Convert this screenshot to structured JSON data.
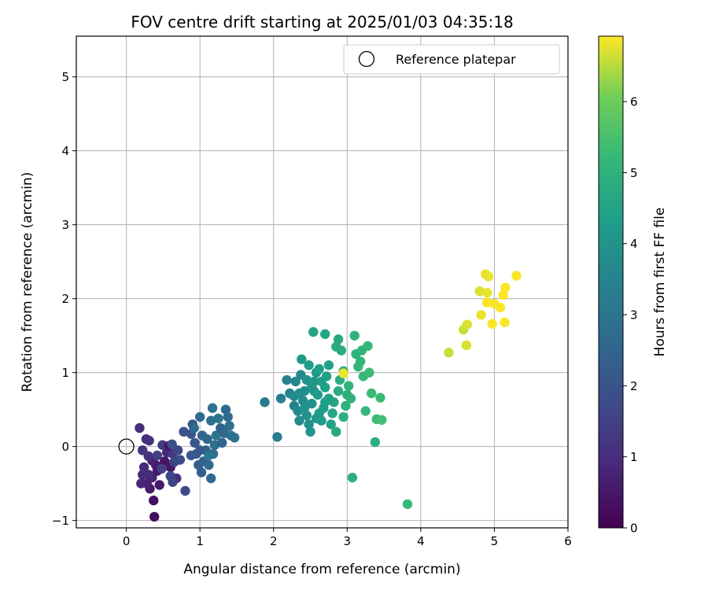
{
  "chart_data": {
    "type": "scatter",
    "title": "FOV centre drift starting at 2025/01/03 04:35:18",
    "xlabel": "Angular distance from reference (arcmin)",
    "ylabel": "Rotation from reference (arcmin)",
    "xlim": [
      -0.68,
      6.0
    ],
    "ylim": [
      -1.1,
      5.55
    ],
    "xticks": [
      0,
      1,
      2,
      3,
      4,
      5,
      6
    ],
    "yticks": [
      -1,
      0,
      1,
      2,
      3,
      4,
      5
    ],
    "grid": true,
    "legend": {
      "placement": "top-right",
      "entries": [
        "Reference platepar"
      ]
    },
    "reference_point": {
      "label": "Reference platepar",
      "x": 0,
      "y": 0
    },
    "colorbar": {
      "label": "Hours from first FF file",
      "colormap": "viridis",
      "range": [
        0,
        6.92
      ],
      "ticks": [
        0,
        1,
        2,
        3,
        4,
        5,
        6
      ]
    },
    "points": [
      {
        "x": 0.38,
        "y": -0.95,
        "c": 0.3
      },
      {
        "x": 0.37,
        "y": -0.73,
        "c": 0.3
      },
      {
        "x": 0.45,
        "y": -0.52,
        "c": 0.5
      },
      {
        "x": 0.32,
        "y": -0.57,
        "c": 0.6
      },
      {
        "x": 0.28,
        "y": -0.5,
        "c": 0.7
      },
      {
        "x": 0.35,
        "y": -0.42,
        "c": 0.8
      },
      {
        "x": 0.2,
        "y": -0.5,
        "c": 0.8
      },
      {
        "x": 0.22,
        "y": -0.38,
        "c": 0.9
      },
      {
        "x": 0.3,
        "y": -0.38,
        "c": 1.0
      },
      {
        "x": 0.42,
        "y": -0.33,
        "c": 0.5
      },
      {
        "x": 0.4,
        "y": -0.25,
        "c": 0.6
      },
      {
        "x": 0.35,
        "y": -0.19,
        "c": 0.7
      },
      {
        "x": 0.24,
        "y": -0.28,
        "c": 1.0
      },
      {
        "x": 0.3,
        "y": -0.13,
        "c": 1.1
      },
      {
        "x": 0.22,
        "y": -0.05,
        "c": 1.2
      },
      {
        "x": 0.27,
        "y": 0.1,
        "c": 1.0
      },
      {
        "x": 0.31,
        "y": 0.08,
        "c": 1.1
      },
      {
        "x": 0.18,
        "y": 0.25,
        "c": 1.0
      },
      {
        "x": 0.52,
        "y": -0.2,
        "c": 0.4
      },
      {
        "x": 0.6,
        "y": -0.28,
        "c": 0.5
      },
      {
        "x": 0.55,
        "y": -0.08,
        "c": 0.9
      },
      {
        "x": 0.49,
        "y": 0.02,
        "c": 1.4
      },
      {
        "x": 0.58,
        "y": 0.01,
        "c": 0.4
      },
      {
        "x": 0.63,
        "y": -0.1,
        "c": 1.3
      },
      {
        "x": 0.68,
        "y": -0.43,
        "c": 1.0
      },
      {
        "x": 0.6,
        "y": -0.4,
        "c": 1.6
      },
      {
        "x": 0.63,
        "y": -0.48,
        "c": 1.6
      },
      {
        "x": 0.48,
        "y": -0.3,
        "c": 1.5
      },
      {
        "x": 0.42,
        "y": -0.12,
        "c": 1.5
      },
      {
        "x": 0.65,
        "y": -0.21,
        "c": 1.6
      },
      {
        "x": 0.7,
        "y": -0.05,
        "c": 1.7
      },
      {
        "x": 0.73,
        "y": -0.18,
        "c": 1.8
      },
      {
        "x": 0.8,
        "y": -0.6,
        "c": 1.8
      },
      {
        "x": 0.62,
        "y": 0.03,
        "c": 1.9
      },
      {
        "x": 0.78,
        "y": 0.2,
        "c": 2.0
      },
      {
        "x": 0.88,
        "y": 0.17,
        "c": 2.0
      },
      {
        "x": 0.9,
        "y": 0.3,
        "c": 2.1
      },
      {
        "x": 0.93,
        "y": 0.05,
        "c": 2.1
      },
      {
        "x": 0.95,
        "y": -0.1,
        "c": 2.2
      },
      {
        "x": 0.88,
        "y": -0.12,
        "c": 2.2
      },
      {
        "x": 0.98,
        "y": -0.25,
        "c": 2.3
      },
      {
        "x": 1.02,
        "y": -0.35,
        "c": 2.3
      },
      {
        "x": 1.05,
        "y": -0.2,
        "c": 2.4
      },
      {
        "x": 1.08,
        "y": -0.05,
        "c": 2.4
      },
      {
        "x": 1.1,
        "y": 0.1,
        "c": 2.5
      },
      {
        "x": 1.03,
        "y": 0.15,
        "c": 2.5
      },
      {
        "x": 1.0,
        "y": 0.4,
        "c": 2.6
      },
      {
        "x": 0.92,
        "y": 0.25,
        "c": 2.6
      },
      {
        "x": 1.15,
        "y": -0.43,
        "c": 2.7
      },
      {
        "x": 1.12,
        "y": -0.25,
        "c": 2.7
      },
      {
        "x": 1.18,
        "y": -0.1,
        "c": 2.8
      },
      {
        "x": 1.2,
        "y": 0.02,
        "c": 2.8
      },
      {
        "x": 1.15,
        "y": 0.35,
        "c": 2.9
      },
      {
        "x": 1.17,
        "y": 0.52,
        "c": 2.9
      },
      {
        "x": 1.25,
        "y": 0.38,
        "c": 3.0
      },
      {
        "x": 1.22,
        "y": 0.15,
        "c": 3.0
      },
      {
        "x": 1.28,
        "y": 0.25,
        "c": 2.4
      },
      {
        "x": 1.3,
        "y": 0.05,
        "c": 2.5
      },
      {
        "x": 1.33,
        "y": 0.18,
        "c": 2.6
      },
      {
        "x": 1.35,
        "y": 0.5,
        "c": 2.6
      },
      {
        "x": 1.38,
        "y": 0.4,
        "c": 2.7
      },
      {
        "x": 1.4,
        "y": 0.28,
        "c": 2.8
      },
      {
        "x": 1.42,
        "y": 0.15,
        "c": 2.9
      },
      {
        "x": 1.47,
        "y": 0.12,
        "c": 3.0
      },
      {
        "x": 1.12,
        "y": -0.12,
        "c": 3.1
      },
      {
        "x": 1.0,
        "y": -0.05,
        "c": 2.2
      },
      {
        "x": 1.88,
        "y": 0.6,
        "c": 3.2
      },
      {
        "x": 2.05,
        "y": 0.13,
        "c": 3.3
      },
      {
        "x": 2.1,
        "y": 0.65,
        "c": 3.4
      },
      {
        "x": 2.18,
        "y": 0.9,
        "c": 3.4
      },
      {
        "x": 2.22,
        "y": 0.72,
        "c": 3.5
      },
      {
        "x": 2.28,
        "y": 0.55,
        "c": 3.5
      },
      {
        "x": 2.3,
        "y": 0.88,
        "c": 3.6
      },
      {
        "x": 2.33,
        "y": 0.48,
        "c": 3.6
      },
      {
        "x": 2.35,
        "y": 0.35,
        "c": 3.7
      },
      {
        "x": 2.37,
        "y": 0.97,
        "c": 3.7
      },
      {
        "x": 2.4,
        "y": 0.62,
        "c": 3.8
      },
      {
        "x": 2.42,
        "y": 0.75,
        "c": 3.8
      },
      {
        "x": 2.45,
        "y": 0.42,
        "c": 3.9
      },
      {
        "x": 2.48,
        "y": 0.3,
        "c": 3.9
      },
      {
        "x": 2.5,
        "y": 0.2,
        "c": 4.0
      },
      {
        "x": 2.52,
        "y": 0.58,
        "c": 4.0
      },
      {
        "x": 2.55,
        "y": 0.88,
        "c": 4.1
      },
      {
        "x": 2.58,
        "y": 1.0,
        "c": 4.1
      },
      {
        "x": 2.6,
        "y": 0.7,
        "c": 4.2
      },
      {
        "x": 2.62,
        "y": 0.45,
        "c": 4.2
      },
      {
        "x": 2.65,
        "y": 0.35,
        "c": 4.3
      },
      {
        "x": 2.68,
        "y": 0.52,
        "c": 4.3
      },
      {
        "x": 2.7,
        "y": 0.8,
        "c": 4.4
      },
      {
        "x": 2.72,
        "y": 0.95,
        "c": 4.4
      },
      {
        "x": 2.75,
        "y": 1.1,
        "c": 4.5
      },
      {
        "x": 2.38,
        "y": 1.18,
        "c": 4.2
      },
      {
        "x": 2.48,
        "y": 1.1,
        "c": 4.3
      },
      {
        "x": 2.54,
        "y": 1.55,
        "c": 4.5
      },
      {
        "x": 2.7,
        "y": 1.52,
        "c": 4.6
      },
      {
        "x": 2.85,
        "y": 1.35,
        "c": 4.7
      },
      {
        "x": 2.88,
        "y": 1.45,
        "c": 4.7
      },
      {
        "x": 2.92,
        "y": 1.3,
        "c": 4.8
      },
      {
        "x": 2.78,
        "y": 0.3,
        "c": 4.5
      },
      {
        "x": 2.82,
        "y": 0.6,
        "c": 4.6
      },
      {
        "x": 2.85,
        "y": 0.2,
        "c": 4.7
      },
      {
        "x": 2.88,
        "y": 0.75,
        "c": 4.8
      },
      {
        "x": 2.9,
        "y": 0.9,
        "c": 4.8
      },
      {
        "x": 2.95,
        "y": 0.4,
        "c": 4.9
      },
      {
        "x": 2.98,
        "y": 0.55,
        "c": 4.9
      },
      {
        "x": 3.02,
        "y": 0.82,
        "c": 5.0
      },
      {
        "x": 3.05,
        "y": 0.65,
        "c": 5.0
      },
      {
        "x": 3.07,
        "y": -0.42,
        "c": 4.9
      },
      {
        "x": 3.1,
        "y": 1.5,
        "c": 5.0
      },
      {
        "x": 3.12,
        "y": 1.25,
        "c": 5.0
      },
      {
        "x": 3.15,
        "y": 1.08,
        "c": 5.1
      },
      {
        "x": 3.18,
        "y": 1.15,
        "c": 5.1
      },
      {
        "x": 3.2,
        "y": 1.3,
        "c": 5.1
      },
      {
        "x": 3.22,
        "y": 0.95,
        "c": 5.2
      },
      {
        "x": 3.25,
        "y": 0.48,
        "c": 5.2
      },
      {
        "x": 3.28,
        "y": 1.36,
        "c": 5.2
      },
      {
        "x": 3.3,
        "y": 1.0,
        "c": 5.3
      },
      {
        "x": 3.33,
        "y": 0.72,
        "c": 5.3
      },
      {
        "x": 3.38,
        "y": 0.06,
        "c": 4.9
      },
      {
        "x": 3.4,
        "y": 0.37,
        "c": 5.3
      },
      {
        "x": 3.45,
        "y": 0.66,
        "c": 5.3
      },
      {
        "x": 3.47,
        "y": 0.36,
        "c": 5.4
      },
      {
        "x": 3.82,
        "y": -0.78,
        "c": 5.2
      },
      {
        "x": 2.55,
        "y": 0.75,
        "c": 4.2
      },
      {
        "x": 2.62,
        "y": 1.05,
        "c": 4.4
      },
      {
        "x": 2.42,
        "y": 0.52,
        "c": 4.0
      },
      {
        "x": 2.75,
        "y": 0.65,
        "c": 4.5
      },
      {
        "x": 2.95,
        "y": 1.02,
        "c": 4.9
      },
      {
        "x": 2.35,
        "y": 0.72,
        "c": 3.8
      },
      {
        "x": 2.65,
        "y": 0.88,
        "c": 4.3
      },
      {
        "x": 2.8,
        "y": 0.45,
        "c": 4.6
      },
      {
        "x": 2.58,
        "y": 0.38,
        "c": 4.2
      },
      {
        "x": 3.0,
        "y": 0.7,
        "c": 4.9
      },
      {
        "x": 2.28,
        "y": 0.68,
        "c": 3.7
      },
      {
        "x": 2.45,
        "y": 0.9,
        "c": 4.0
      },
      {
        "x": 2.52,
        "y": 0.82,
        "c": 4.1
      },
      {
        "x": 2.7,
        "y": 0.6,
        "c": 4.4
      },
      {
        "x": 2.95,
        "y": 0.99,
        "c": 6.8
      },
      {
        "x": 4.38,
        "y": 1.27,
        "c": 6.6
      },
      {
        "x": 4.58,
        "y": 1.58,
        "c": 6.6
      },
      {
        "x": 4.63,
        "y": 1.65,
        "c": 6.7
      },
      {
        "x": 4.62,
        "y": 1.37,
        "c": 6.7
      },
      {
        "x": 4.8,
        "y": 2.1,
        "c": 6.7
      },
      {
        "x": 4.82,
        "y": 1.78,
        "c": 6.8
      },
      {
        "x": 4.88,
        "y": 2.33,
        "c": 6.8
      },
      {
        "x": 4.9,
        "y": 2.08,
        "c": 6.8
      },
      {
        "x": 4.92,
        "y": 2.3,
        "c": 6.8
      },
      {
        "x": 4.9,
        "y": 1.95,
        "c": 6.9
      },
      {
        "x": 4.97,
        "y": 1.66,
        "c": 6.9
      },
      {
        "x": 5.0,
        "y": 1.93,
        "c": 6.9
      },
      {
        "x": 5.08,
        "y": 1.88,
        "c": 6.9
      },
      {
        "x": 5.12,
        "y": 2.05,
        "c": 6.9
      },
      {
        "x": 5.15,
        "y": 2.15,
        "c": 6.9
      },
      {
        "x": 5.14,
        "y": 1.68,
        "c": 6.9
      },
      {
        "x": 5.3,
        "y": 2.31,
        "c": 6.9
      }
    ]
  }
}
